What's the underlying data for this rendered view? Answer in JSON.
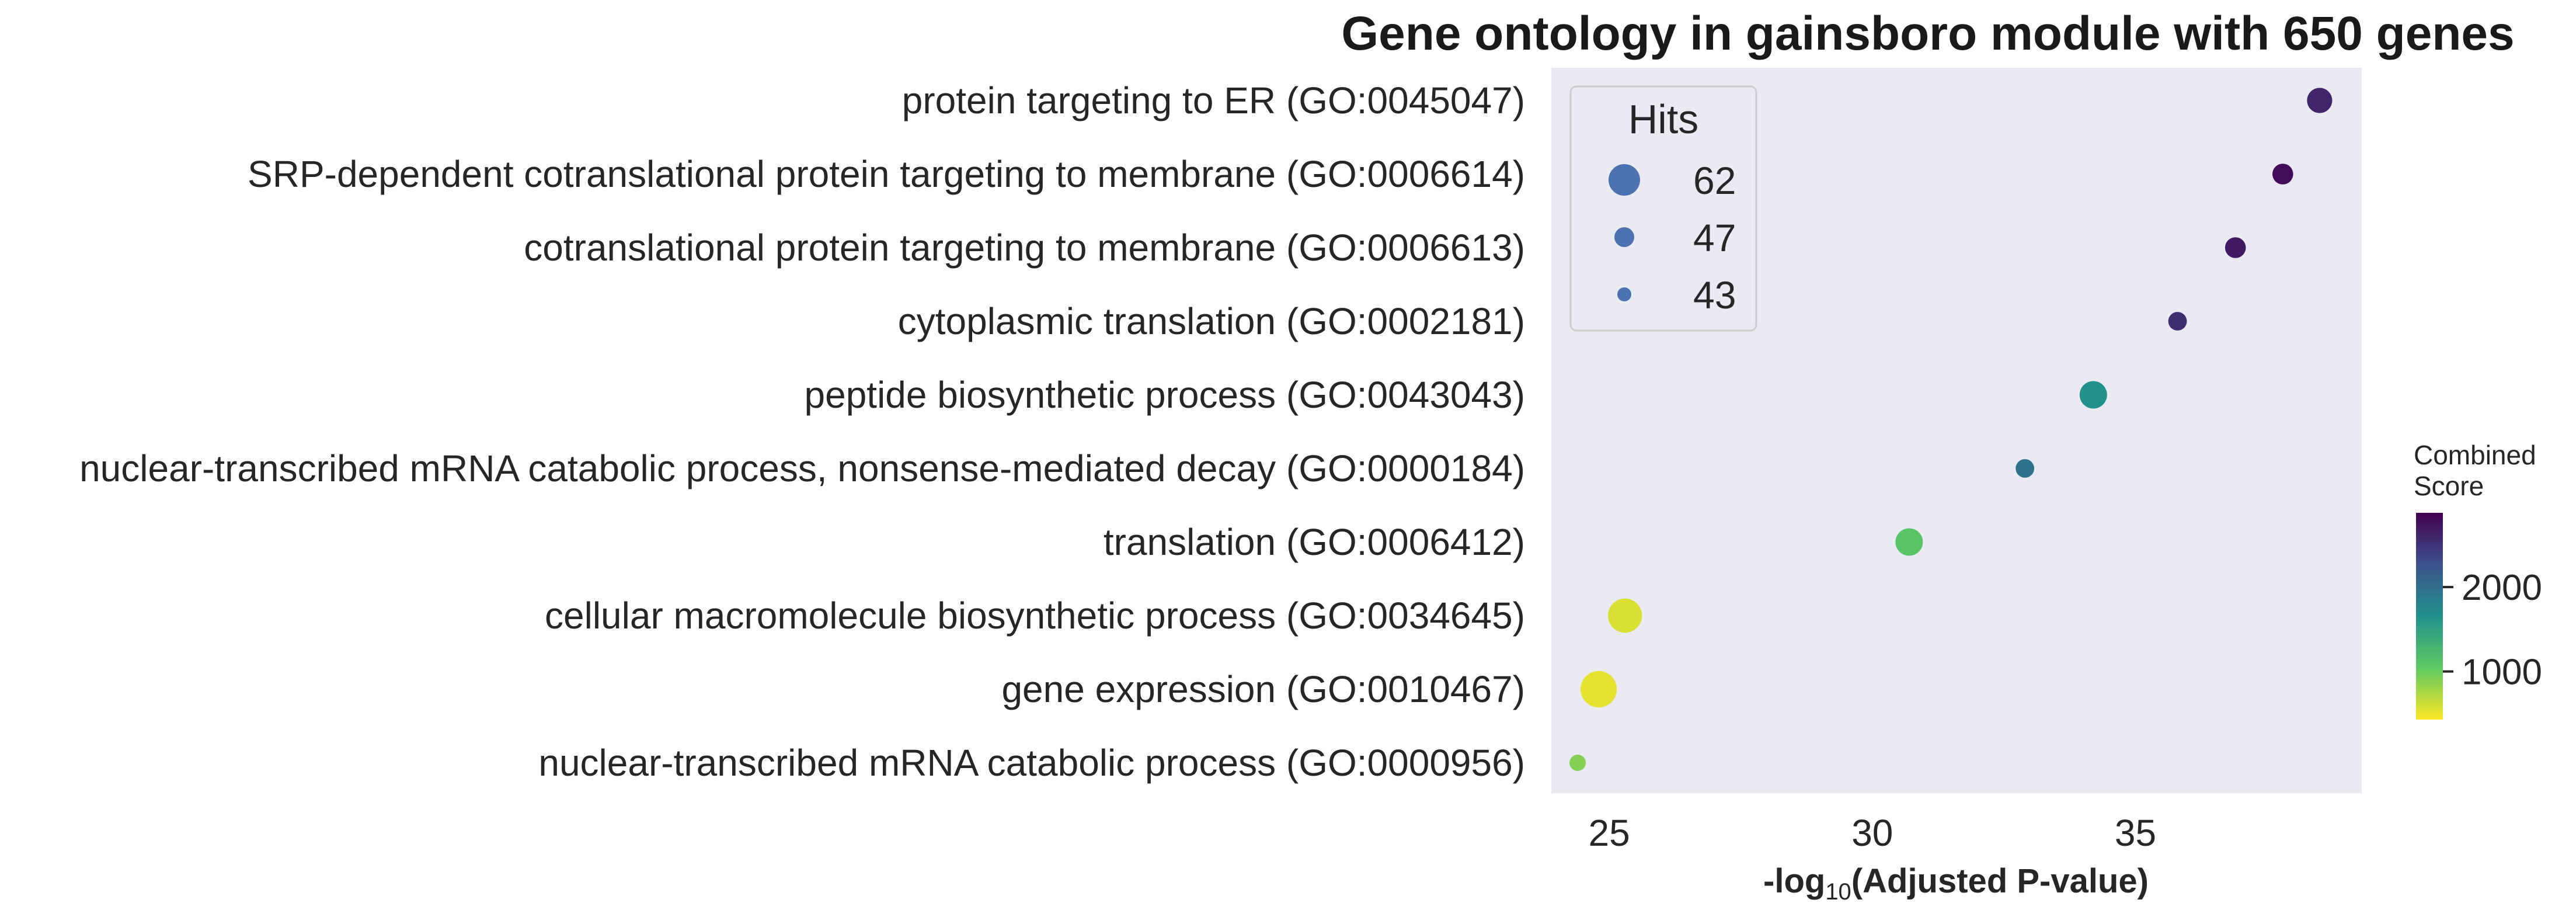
{
  "chart_data": {
    "type": "scatter",
    "title": "Gene ontology in gainsboro module with 650 genes",
    "xlabel_main": "-log",
    "xlabel_sub": "10",
    "xlabel_rest": "(Adjusted P-value)",
    "xlim": [
      23.9,
      39.3
    ],
    "xticks": [
      25,
      30,
      35
    ],
    "terms": [
      "protein targeting to ER (GO:0045047)",
      "SRP-dependent cotranslational protein targeting to membrane (GO:0006614)",
      "cotranslational protein targeting to membrane (GO:0006613)",
      "cytoplasmic translation (GO:0002181)",
      "peptide biosynthetic process (GO:0043043)",
      "nuclear-transcribed mRNA catabolic process, nonsense-mediated decay (GO:0000184)",
      "translation (GO:0006412)",
      "cellular macromolecule biosynthetic process (GO:0034645)",
      "gene expression (GO:0010467)",
      "nuclear-transcribed mRNA catabolic process (GO:0000956)"
    ],
    "x": [
      38.5,
      37.8,
      36.9,
      35.8,
      34.2,
      32.9,
      30.7,
      25.3,
      24.8,
      24.4
    ],
    "hits": [
      46,
      44,
      44,
      43,
      47,
      43,
      47,
      50,
      51,
      42
    ],
    "combined_score": [
      2600,
      2800,
      2700,
      2550,
      1650,
      1950,
      1100,
      570,
      520,
      900
    ],
    "score_range": [
      430,
      2880
    ],
    "legend": {
      "title": "Hits",
      "placement": "upper-left",
      "entries": [
        {
          "label": "62",
          "value": 62
        },
        {
          "label": "47",
          "value": 47
        },
        {
          "label": "43",
          "value": 43
        }
      ],
      "color": "#4c72b0"
    },
    "colorbar": {
      "title_line1": "Combined",
      "title_line2": "Score",
      "ticks": [
        1000,
        2000
      ],
      "colormap": "viridis_r"
    },
    "grid": false,
    "background": "#eaeaf2"
  }
}
